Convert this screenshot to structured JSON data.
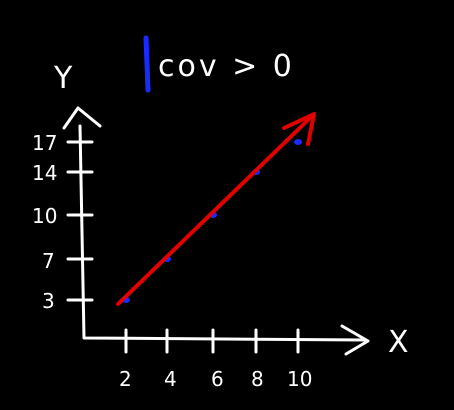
{
  "title": "cov > 0",
  "colors": {
    "background": "#000000",
    "ink": "#ffffff",
    "trend_line": "#e00000",
    "points": "#1a2bff",
    "title_bar": "#1a2bff"
  },
  "chart_data": {
    "type": "scatter",
    "title": "cov > 0",
    "xlabel": "X",
    "ylabel": "Y",
    "x_ticks": [
      "2",
      "4",
      "6",
      "8",
      "10"
    ],
    "y_ticks": [
      "3",
      "7",
      "10",
      "14",
      "17"
    ],
    "points": [
      {
        "x": 2,
        "y": 3
      },
      {
        "x": 4,
        "y": 7
      },
      {
        "x": 6,
        "y": 10
      },
      {
        "x": 8,
        "y": 14
      },
      {
        "x": 10,
        "y": 17
      }
    ],
    "trend": "positive",
    "grid": false,
    "legend": "none"
  }
}
